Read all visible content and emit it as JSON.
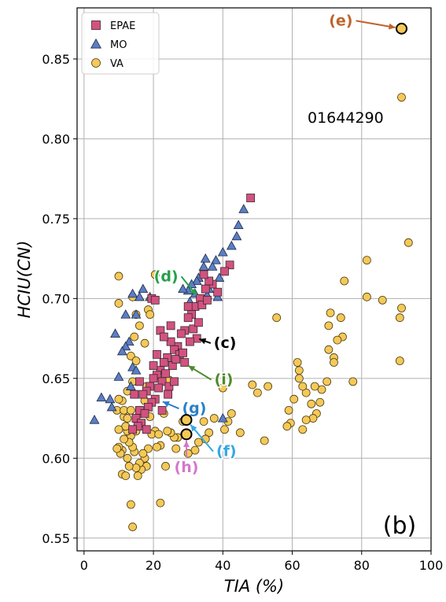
{
  "chart_data": {
    "type": "scatter",
    "xlabel": "TIA (%)",
    "ylabel": "HCIU(CN)",
    "xlim": [
      -2,
      100
    ],
    "ylim": [
      0.542,
      0.882
    ],
    "xticks": [
      0,
      20,
      40,
      60,
      80,
      100
    ],
    "yticks": [
      0.55,
      0.6,
      0.65,
      0.7,
      0.75,
      0.8,
      0.85
    ],
    "grid": true,
    "legend_position": "top-left",
    "panel_label": "(b)",
    "point_label": "01644290",
    "series": [
      {
        "name": "EPAE",
        "marker": "square",
        "color": "#d2527f",
        "points": [
          [
            48.0,
            0.763
          ],
          [
            42.0,
            0.721
          ],
          [
            40.5,
            0.717
          ],
          [
            37.0,
            0.709
          ],
          [
            38.5,
            0.704
          ],
          [
            36.0,
            0.711
          ],
          [
            35.0,
            0.706
          ],
          [
            34.5,
            0.715
          ],
          [
            33.5,
            0.7
          ],
          [
            32.0,
            0.695
          ],
          [
            31.0,
            0.69
          ],
          [
            30.0,
            0.688
          ],
          [
            31.5,
            0.681
          ],
          [
            33.0,
            0.685
          ],
          [
            29.0,
            0.68
          ],
          [
            28.0,
            0.678
          ],
          [
            32.5,
            0.675
          ],
          [
            30.5,
            0.673
          ],
          [
            27.0,
            0.67
          ],
          [
            26.0,
            0.668
          ],
          [
            25.0,
            0.673
          ],
          [
            27.5,
            0.665
          ],
          [
            24.0,
            0.663
          ],
          [
            23.0,
            0.66
          ],
          [
            25.5,
            0.658
          ],
          [
            22.0,
            0.655
          ],
          [
            21.0,
            0.652
          ],
          [
            22.5,
            0.648
          ],
          [
            20.0,
            0.65
          ],
          [
            19.0,
            0.645
          ],
          [
            24.5,
            0.645
          ],
          [
            18.0,
            0.642
          ],
          [
            17.0,
            0.64
          ],
          [
            20.5,
            0.637
          ],
          [
            19.5,
            0.635
          ],
          [
            18.5,
            0.632
          ],
          [
            16.0,
            0.63
          ],
          [
            17.5,
            0.628
          ],
          [
            15.0,
            0.625
          ],
          [
            16.5,
            0.622
          ],
          [
            15.5,
            0.62
          ],
          [
            14.0,
            0.618
          ],
          [
            21.5,
            0.644
          ],
          [
            23.5,
            0.653
          ],
          [
            26.5,
            0.662
          ],
          [
            28.5,
            0.666
          ],
          [
            24.2,
            0.64
          ],
          [
            25.0,
            0.683
          ],
          [
            19.5,
            0.7
          ],
          [
            20.5,
            0.699
          ],
          [
            21.0,
            0.665
          ],
          [
            22.0,
            0.68
          ],
          [
            23.0,
            0.676
          ],
          [
            14.5,
            0.64
          ],
          [
            30.0,
            0.695
          ],
          [
            34.0,
            0.696
          ],
          [
            35.5,
            0.699
          ],
          [
            18.0,
            0.618
          ],
          [
            22.5,
            0.63
          ],
          [
            26.0,
            0.648
          ],
          [
            29.0,
            0.66
          ],
          [
            16.0,
            0.648
          ],
          [
            20.0,
            0.658
          ]
        ]
      },
      {
        "name": "MO",
        "marker": "triangle",
        "color": "#5b7ec4",
        "points": [
          [
            46.0,
            0.756
          ],
          [
            44.5,
            0.746
          ],
          [
            44.0,
            0.739
          ],
          [
            42.5,
            0.733
          ],
          [
            40.0,
            0.729
          ],
          [
            38.0,
            0.724
          ],
          [
            37.0,
            0.72
          ],
          [
            39.0,
            0.713
          ],
          [
            35.0,
            0.725
          ],
          [
            34.5,
            0.72
          ],
          [
            33.0,
            0.713
          ],
          [
            32.5,
            0.711
          ],
          [
            31.0,
            0.709
          ],
          [
            35.5,
            0.702
          ],
          [
            38.5,
            0.701
          ],
          [
            32.0,
            0.703
          ],
          [
            30.5,
            0.698
          ],
          [
            30.0,
            0.705
          ],
          [
            17.0,
            0.706
          ],
          [
            16.0,
            0.701
          ],
          [
            19.0,
            0.701
          ],
          [
            14.0,
            0.703
          ],
          [
            15.0,
            0.69
          ],
          [
            12.0,
            0.69
          ],
          [
            9.0,
            0.678
          ],
          [
            13.0,
            0.673
          ],
          [
            12.0,
            0.67
          ],
          [
            11.0,
            0.667
          ],
          [
            14.0,
            0.657
          ],
          [
            15.0,
            0.655
          ],
          [
            10.0,
            0.651
          ],
          [
            13.5,
            0.645
          ],
          [
            5.0,
            0.638
          ],
          [
            7.5,
            0.637
          ],
          [
            8.0,
            0.632
          ],
          [
            3.0,
            0.624
          ],
          [
            40.0,
            0.625
          ],
          [
            36.0,
            0.706
          ],
          [
            28.5,
            0.706
          ]
        ]
      },
      {
        "name": "VA",
        "marker": "circle",
        "color": "#f4c958",
        "points": [
          [
            91.5,
            0.869
          ],
          [
            91.5,
            0.826
          ],
          [
            93.5,
            0.735
          ],
          [
            91.5,
            0.694
          ],
          [
            91.0,
            0.688
          ],
          [
            91.0,
            0.661
          ],
          [
            86.0,
            0.699
          ],
          [
            81.5,
            0.724
          ],
          [
            81.5,
            0.701
          ],
          [
            77.5,
            0.648
          ],
          [
            75.0,
            0.711
          ],
          [
            74.5,
            0.676
          ],
          [
            74.0,
            0.688
          ],
          [
            73.0,
            0.674
          ],
          [
            72.0,
            0.663
          ],
          [
            72.0,
            0.66
          ],
          [
            71.0,
            0.691
          ],
          [
            70.5,
            0.683
          ],
          [
            70.5,
            0.668
          ],
          [
            70.0,
            0.648
          ],
          [
            68.5,
            0.643
          ],
          [
            68.0,
            0.635
          ],
          [
            67.0,
            0.628
          ],
          [
            66.5,
            0.645
          ],
          [
            65.5,
            0.634
          ],
          [
            66.0,
            0.625
          ],
          [
            64.0,
            0.641
          ],
          [
            64.0,
            0.624
          ],
          [
            63.0,
            0.618
          ],
          [
            63.0,
            0.645
          ],
          [
            62.0,
            0.65
          ],
          [
            61.5,
            0.66
          ],
          [
            62.0,
            0.655
          ],
          [
            60.5,
            0.637
          ],
          [
            59.0,
            0.63
          ],
          [
            59.5,
            0.622
          ],
          [
            58.5,
            0.62
          ],
          [
            55.5,
            0.688
          ],
          [
            53.0,
            0.645
          ],
          [
            52.0,
            0.611
          ],
          [
            50.0,
            0.641
          ],
          [
            48.5,
            0.646
          ],
          [
            45.0,
            0.616
          ],
          [
            42.5,
            0.628
          ],
          [
            41.5,
            0.623
          ],
          [
            40.5,
            0.618
          ],
          [
            40.0,
            0.644
          ],
          [
            37.5,
            0.625
          ],
          [
            36.0,
            0.616
          ],
          [
            35.0,
            0.612
          ],
          [
            33.0,
            0.61
          ],
          [
            32.0,
            0.605
          ],
          [
            30.0,
            0.603
          ],
          [
            28.5,
            0.623
          ],
          [
            29.0,
            0.615
          ],
          [
            27.0,
            0.613
          ],
          [
            26.0,
            0.613
          ],
          [
            25.0,
            0.616
          ],
          [
            24.0,
            0.617
          ],
          [
            23.5,
            0.595
          ],
          [
            22.0,
            0.572
          ],
          [
            22.0,
            0.608
          ],
          [
            21.0,
            0.607
          ],
          [
            20.5,
            0.617
          ],
          [
            19.5,
            0.615
          ],
          [
            19.0,
            0.626
          ],
          [
            18.5,
            0.606
          ],
          [
            18.0,
            0.595
          ],
          [
            17.5,
            0.6
          ],
          [
            17.0,
            0.603
          ],
          [
            16.5,
            0.593
          ],
          [
            16.0,
            0.597
          ],
          [
            15.5,
            0.589
          ],
          [
            15.0,
            0.594
          ],
          [
            14.5,
            0.604
          ],
          [
            14.0,
            0.607
          ],
          [
            13.5,
            0.614
          ],
          [
            13.0,
            0.61
          ],
          [
            13.0,
            0.595
          ],
          [
            12.5,
            0.6
          ],
          [
            12.5,
            0.617
          ],
          [
            12.0,
            0.62
          ],
          [
            11.5,
            0.626
          ],
          [
            11.5,
            0.612
          ],
          [
            11.0,
            0.605
          ],
          [
            11.0,
            0.59
          ],
          [
            10.5,
            0.603
          ],
          [
            10.0,
            0.607
          ],
          [
            10.0,
            0.618
          ],
          [
            9.5,
            0.63
          ],
          [
            9.5,
            0.606
          ],
          [
            13.5,
            0.571
          ],
          [
            14.0,
            0.557
          ],
          [
            12.0,
            0.589
          ],
          [
            10.0,
            0.714
          ],
          [
            10.0,
            0.697
          ],
          [
            14.0,
            0.701
          ],
          [
            15.0,
            0.69
          ],
          [
            16.0,
            0.683
          ],
          [
            14.5,
            0.676
          ],
          [
            13.5,
            0.664
          ],
          [
            15.0,
            0.661
          ],
          [
            12.5,
            0.642
          ],
          [
            11.0,
            0.636
          ],
          [
            10.0,
            0.637
          ],
          [
            20.5,
            0.715
          ],
          [
            18.5,
            0.693
          ],
          [
            17.5,
            0.672
          ],
          [
            19.0,
            0.69
          ],
          [
            21.5,
            0.615
          ],
          [
            23.0,
            0.628
          ],
          [
            24.5,
            0.649
          ],
          [
            15.0,
            0.617
          ],
          [
            16.5,
            0.628
          ],
          [
            17.5,
            0.636
          ],
          [
            18.0,
            0.645
          ],
          [
            11.5,
            0.63
          ],
          [
            12.5,
            0.625
          ],
          [
            13.5,
            0.63
          ],
          [
            26.5,
            0.606
          ],
          [
            31.5,
            0.63
          ],
          [
            34.5,
            0.623
          ],
          [
            14.0,
            0.648
          ]
        ]
      }
    ],
    "annotations": [
      {
        "label": "(e)",
        "color": "#c0622b",
        "x": 91.5,
        "y": 0.869
      },
      {
        "label": "(d)",
        "color": "#27a04a",
        "x": 33.5,
        "y": 0.699
      },
      {
        "label": "(c)",
        "color": "#000000",
        "x": 31.5,
        "y": 0.676
      },
      {
        "label": "(i)",
        "color": "#4e8a2c",
        "x": 28.5,
        "y": 0.66
      },
      {
        "label": "(g)",
        "color": "#2a7fc8",
        "x": 21.0,
        "y": 0.637
      },
      {
        "label": "(f)",
        "color": "#36a8e0",
        "x": 29.5,
        "y": 0.624
      },
      {
        "label": "(h)",
        "color": "#d477c9",
        "x": 29.5,
        "y": 0.615
      }
    ]
  }
}
